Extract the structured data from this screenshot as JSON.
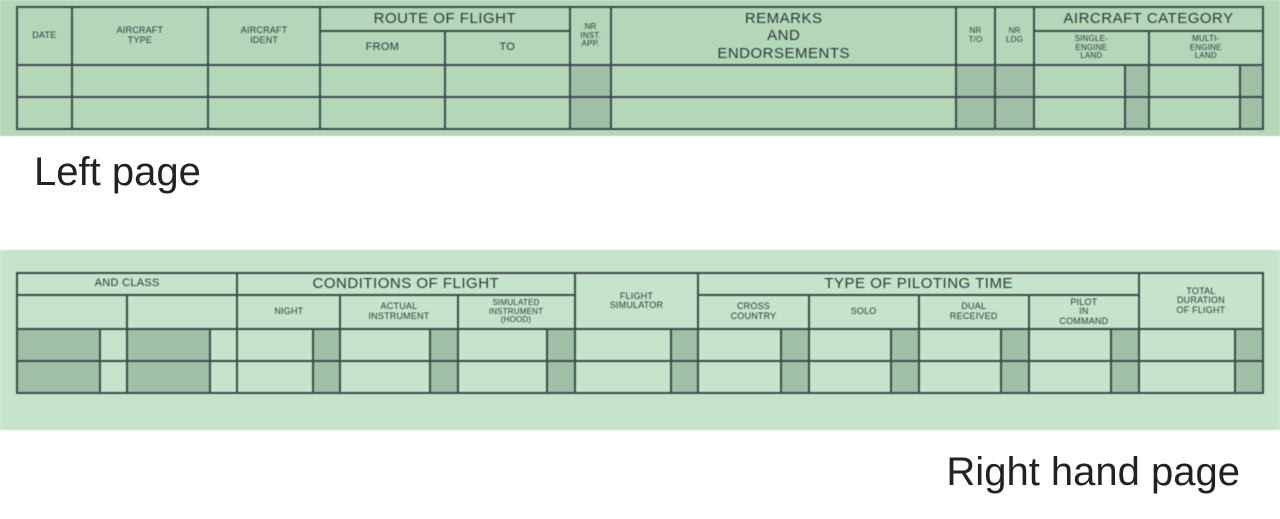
{
  "colors": {
    "paper_top": "#b5d7b9",
    "paper_bottom": "#c6e3cb",
    "border": "#3d4a4a",
    "shade": "#9fbfa6",
    "text_dark": "#2b3a3a",
    "label_text": "#222222",
    "page_bg": "#ffffff"
  },
  "labels": {
    "left_page": "Left page",
    "right_page": "Right hand page"
  },
  "left": {
    "headers": {
      "date": "DATE",
      "aircraft_type": "AIRCRAFT TYPE",
      "aircraft_ident": "AIRCRAFT IDENT",
      "route_of_flight": "ROUTE OF FLIGHT",
      "from": "FROM",
      "to": "TO",
      "nr_inst_app": "NR INST. APP.",
      "remarks": "REMARKS AND ENDORSEMENTS",
      "nr_to": "NR T/O",
      "nr_ldg": "NR LDG",
      "aircraft_category": "AIRCRAFT CATEGORY",
      "single_engine_land": "SINGLE- ENGINE LAND",
      "multi_engine_land": "MULTI- ENGINE LAND"
    },
    "col_widths_pct": [
      4.2,
      10.5,
      8.6,
      9.6,
      9.6,
      3.2,
      26.5,
      3.0,
      3.0,
      7.0,
      1.8,
      7.0,
      1.8
    ]
  },
  "right": {
    "headers": {
      "and_class": "AND CLASS",
      "conditions_of_flight": "CONDITIONS OF FLIGHT",
      "night": "NIGHT",
      "actual_instrument": "ACTUAL INSTRUMENT",
      "simulated_instrument": "SIMULATED INSTRUMENT (HOOD)",
      "flight_simulator": "FLIGHT SIMULATOR",
      "type_of_piloting_time": "TYPE OF PILOTING TIME",
      "cross_country": "CROSS COUNTRY",
      "solo": "SOLO",
      "dual_received": "DUAL RECEIVED",
      "pilot_in_command": "PILOT IN COMMAND",
      "total_duration": "TOTAL DURATION OF FLIGHT"
    }
  },
  "typography": {
    "header_big_pt": 15,
    "header_mid_pt": 11,
    "header_sm_pt": 9,
    "header_xs_pt": 8,
    "label_pt": 40
  }
}
